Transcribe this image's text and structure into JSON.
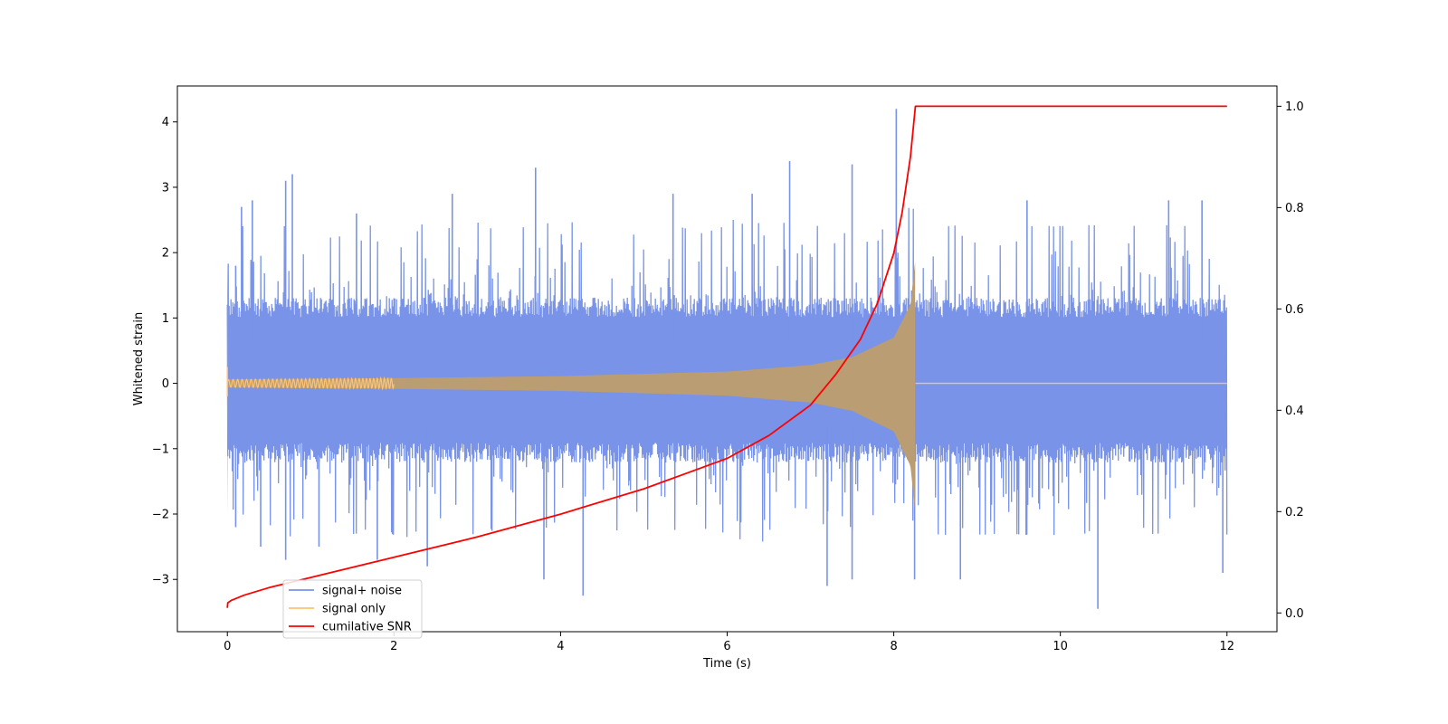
{
  "chart_data": {
    "type": "line",
    "title": "",
    "xlabel": "Time (s)",
    "ylabel": "Whitened strain",
    "y2label": "",
    "xlim": [
      -0.6,
      12.6
    ],
    "ylim": [
      -3.8,
      4.55
    ],
    "y2lim": [
      -0.037,
      1.04
    ],
    "xticks": [
      0,
      2,
      4,
      6,
      8,
      10,
      12
    ],
    "xtick_labels": [
      "0",
      "2",
      "4",
      "6",
      "8",
      "10",
      "12"
    ],
    "yticks": [
      -3,
      -2,
      -1,
      0,
      1,
      2,
      3,
      4
    ],
    "ytick_labels": [
      "−3",
      "−2",
      "−1",
      "0",
      "1",
      "2",
      "3",
      "4"
    ],
    "y2ticks": [
      0.0,
      0.2,
      0.4,
      0.6,
      0.8,
      1.0
    ],
    "y2tick_labels": [
      "0.0",
      "0.2",
      "0.4",
      "0.6",
      "0.8",
      "1.0"
    ],
    "grid": false,
    "legend_position": "lower-left",
    "merger_time": 8.26,
    "series": [
      {
        "name": "signal+ noise",
        "color": "#7893e8",
        "axis": "left",
        "kind": "noise",
        "x_range": [
          0,
          12
        ],
        "typical_range": [
          -1.7,
          1.8
        ],
        "peaks": [
          {
            "x": 0.1,
            "y": 1.8
          },
          {
            "x": 0.17,
            "y": 2.7
          },
          {
            "x": 0.3,
            "y": 2.8
          },
          {
            "x": 0.7,
            "y": 3.1
          },
          {
            "x": 0.78,
            "y": 3.2
          },
          {
            "x": 1.55,
            "y": 2.6
          },
          {
            "x": 2.7,
            "y": 2.9
          },
          {
            "x": 3.7,
            "y": 3.3
          },
          {
            "x": 5.35,
            "y": 2.9
          },
          {
            "x": 6.3,
            "y": 2.9
          },
          {
            "x": 6.75,
            "y": 3.4
          },
          {
            "x": 7.5,
            "y": 3.35
          },
          {
            "x": 8.03,
            "y": 4.2
          },
          {
            "x": 9.6,
            "y": 2.8
          },
          {
            "x": 11.3,
            "y": 2.8
          },
          {
            "x": 11.7,
            "y": 2.8
          },
          {
            "x": 0.1,
            "y": -2.2
          },
          {
            "x": 0.4,
            "y": -2.5
          },
          {
            "x": 0.7,
            "y": -2.7
          },
          {
            "x": 1.1,
            "y": -2.5
          },
          {
            "x": 1.8,
            "y": -2.7
          },
          {
            "x": 2.4,
            "y": -2.8
          },
          {
            "x": 3.8,
            "y": -3.0
          },
          {
            "x": 4.27,
            "y": -3.25
          },
          {
            "x": 7.2,
            "y": -3.1
          },
          {
            "x": 7.5,
            "y": -3.0
          },
          {
            "x": 8.25,
            "y": -3.0
          },
          {
            "x": 8.8,
            "y": -3.0
          },
          {
            "x": 10.45,
            "y": -3.45
          },
          {
            "x": 11.95,
            "y": -2.9
          }
        ]
      },
      {
        "name": "signal only",
        "color": "#fdc372",
        "axis": "left",
        "kind": "chirp",
        "x_range": [
          0,
          12
        ],
        "envelope": [
          {
            "x": 0,
            "y": 0.06
          },
          {
            "x": 2,
            "y": 0.08
          },
          {
            "x": 4,
            "y": 0.11
          },
          {
            "x": 6,
            "y": 0.18
          },
          {
            "x": 7,
            "y": 0.28
          },
          {
            "x": 7.5,
            "y": 0.4
          },
          {
            "x": 8,
            "y": 0.7
          },
          {
            "x": 8.2,
            "y": 1.2
          },
          {
            "x": 8.26,
            "y": 1.9
          }
        ]
      },
      {
        "name": "cumilative SNR",
        "color": "#ff0000",
        "axis": "right",
        "x": [
          0,
          0.005,
          0.05,
          0.2,
          0.5,
          1,
          2,
          3,
          4,
          5,
          6,
          6.5,
          7,
          7.3,
          7.6,
          7.8,
          8.0,
          8.1,
          8.2,
          8.26,
          9,
          10,
          11,
          12
        ],
        "values": [
          0.01,
          0.02,
          0.025,
          0.035,
          0.05,
          0.07,
          0.11,
          0.15,
          0.195,
          0.245,
          0.305,
          0.35,
          0.41,
          0.47,
          0.54,
          0.61,
          0.71,
          0.79,
          0.9,
          1.0,
          1.0,
          1.0,
          1.0,
          1.0
        ]
      }
    ]
  }
}
